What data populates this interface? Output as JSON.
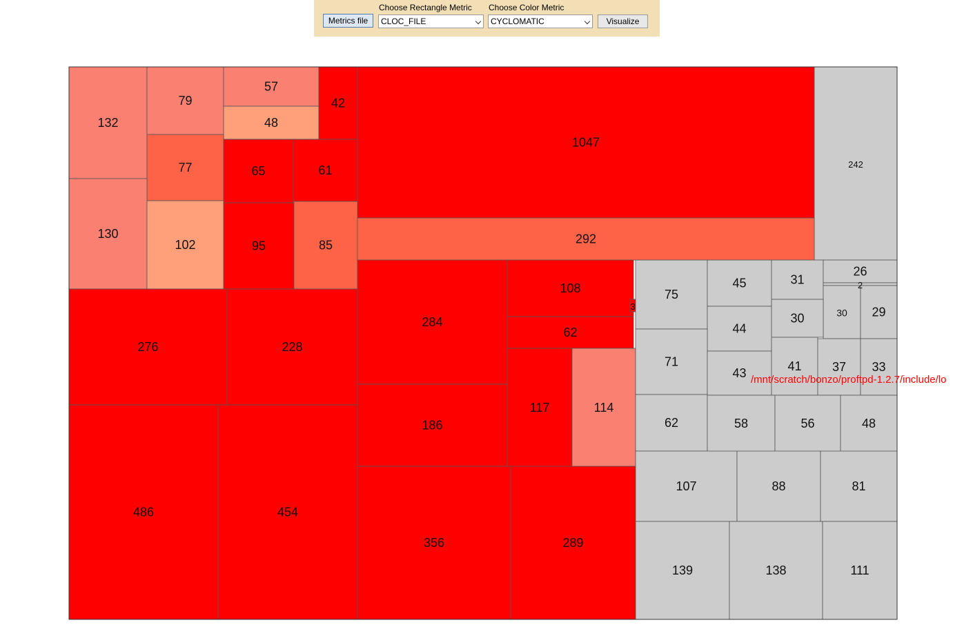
{
  "toolbar": {
    "metrics_button": "Metrics file",
    "rect_metric_label": "Choose Rectangle Metric",
    "rect_metric_value": "CLOC_FILE",
    "color_metric_label": "Choose Color Metric",
    "color_metric_value": "CYCLOMATIC",
    "visualize_button": "Visualize"
  },
  "hover_path": "/mnt/scratch/bonzo/proftpd-1.2.7/include/lo",
  "colors": {
    "red": "#ff0000",
    "tomato": "#ff6347",
    "salmon": "#fa8072",
    "light_salmon": "#ffa07a",
    "gray": "#cccccc"
  },
  "chart_data": {
    "type": "treemap",
    "size_metric": "CLOC_FILE",
    "color_metric": "CYCLOMATIC",
    "cells": [
      {
        "value": 132,
        "color": "salmon"
      },
      {
        "value": 79,
        "color": "salmon"
      },
      {
        "value": 57,
        "color": "salmon"
      },
      {
        "value": 48,
        "color": "light_salmon"
      },
      {
        "value": 42,
        "color": "red"
      },
      {
        "value": 1047,
        "color": "red"
      },
      {
        "value": 242,
        "color": "gray"
      },
      {
        "value": 77,
        "color": "tomato"
      },
      {
        "value": 65,
        "color": "red"
      },
      {
        "value": 61,
        "color": "red"
      },
      {
        "value": 130,
        "color": "salmon"
      },
      {
        "value": 102,
        "color": "light_salmon"
      },
      {
        "value": 95,
        "color": "red"
      },
      {
        "value": 85,
        "color": "tomato"
      },
      {
        "value": 292,
        "color": "tomato"
      },
      {
        "value": 276,
        "color": "red"
      },
      {
        "value": 228,
        "color": "red"
      },
      {
        "value": 486,
        "color": "red"
      },
      {
        "value": 454,
        "color": "red"
      },
      {
        "value": 284,
        "color": "red"
      },
      {
        "value": 108,
        "color": "red"
      },
      {
        "value": 62,
        "color": "red"
      },
      {
        "value": 3,
        "color": "red"
      },
      {
        "value": 186,
        "color": "red"
      },
      {
        "value": 117,
        "color": "red"
      },
      {
        "value": 114,
        "color": "salmon"
      },
      {
        "value": 356,
        "color": "red"
      },
      {
        "value": 289,
        "color": "red"
      },
      {
        "value": 75,
        "color": "gray"
      },
      {
        "value": 45,
        "color": "gray"
      },
      {
        "value": 31,
        "color": "gray"
      },
      {
        "value": 26,
        "color": "gray"
      },
      {
        "value": 2,
        "color": "gray"
      },
      {
        "value": 30,
        "color": "gray"
      },
      {
        "value": 29,
        "color": "gray"
      },
      {
        "value": 44,
        "color": "gray"
      },
      {
        "value": 30,
        "color": "gray"
      },
      {
        "value": 71,
        "color": "gray"
      },
      {
        "value": 43,
        "color": "gray"
      },
      {
        "value": 41,
        "color": "gray"
      },
      {
        "value": 37,
        "color": "gray"
      },
      {
        "value": 33,
        "color": "gray"
      },
      {
        "value": 62,
        "color": "gray"
      },
      {
        "value": 58,
        "color": "gray"
      },
      {
        "value": 56,
        "color": "gray"
      },
      {
        "value": 48,
        "color": "gray"
      },
      {
        "value": 107,
        "color": "gray"
      },
      {
        "value": 88,
        "color": "gray"
      },
      {
        "value": 81,
        "color": "gray"
      },
      {
        "value": 139,
        "color": "gray"
      },
      {
        "value": 138,
        "color": "gray"
      },
      {
        "value": 111,
        "color": "gray"
      }
    ]
  }
}
